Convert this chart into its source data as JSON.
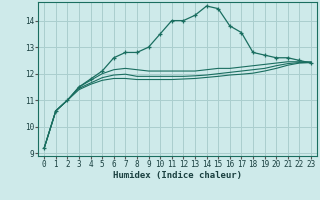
{
  "title": "",
  "xlabel": "Humidex (Indice chaleur)",
  "ylabel": "",
  "bg_color": "#ceeaea",
  "grid_color": "#aacece",
  "line_color": "#1a6e60",
  "x": [
    0,
    1,
    2,
    3,
    4,
    5,
    6,
    7,
    8,
    9,
    10,
    11,
    12,
    13,
    14,
    15,
    16,
    17,
    18,
    19,
    20,
    21,
    22,
    23
  ],
  "line1": [
    9.2,
    10.6,
    11.0,
    11.5,
    11.8,
    12.1,
    12.6,
    12.8,
    12.8,
    13.0,
    13.5,
    14.0,
    14.0,
    14.2,
    14.55,
    14.45,
    13.8,
    13.55,
    12.8,
    12.7,
    12.6,
    12.6,
    12.5,
    12.4
  ],
  "line2": [
    9.2,
    10.6,
    11.0,
    11.5,
    11.75,
    12.0,
    12.15,
    12.2,
    12.15,
    12.1,
    12.1,
    12.1,
    12.1,
    12.1,
    12.15,
    12.2,
    12.2,
    12.25,
    12.3,
    12.35,
    12.4,
    12.45,
    12.45,
    12.45
  ],
  "line3": [
    9.2,
    10.6,
    11.0,
    11.45,
    11.65,
    11.85,
    11.95,
    11.98,
    11.9,
    11.9,
    11.9,
    11.9,
    11.9,
    11.92,
    11.95,
    12.0,
    12.05,
    12.1,
    12.15,
    12.2,
    12.3,
    12.38,
    12.42,
    12.42
  ],
  "line4": [
    9.2,
    10.6,
    11.0,
    11.4,
    11.6,
    11.75,
    11.82,
    11.82,
    11.78,
    11.78,
    11.78,
    11.78,
    11.8,
    11.82,
    11.86,
    11.9,
    11.95,
    11.98,
    12.02,
    12.1,
    12.2,
    12.32,
    12.4,
    12.42
  ],
  "ylim": [
    9.0,
    14.5
  ],
  "xlim": [
    -0.5,
    23.5
  ],
  "yticks": [
    9,
    10,
    11,
    12,
    13,
    14
  ],
  "xticks": [
    0,
    1,
    2,
    3,
    4,
    5,
    6,
    7,
    8,
    9,
    10,
    11,
    12,
    13,
    14,
    15,
    16,
    17,
    18,
    19,
    20,
    21,
    22,
    23
  ]
}
